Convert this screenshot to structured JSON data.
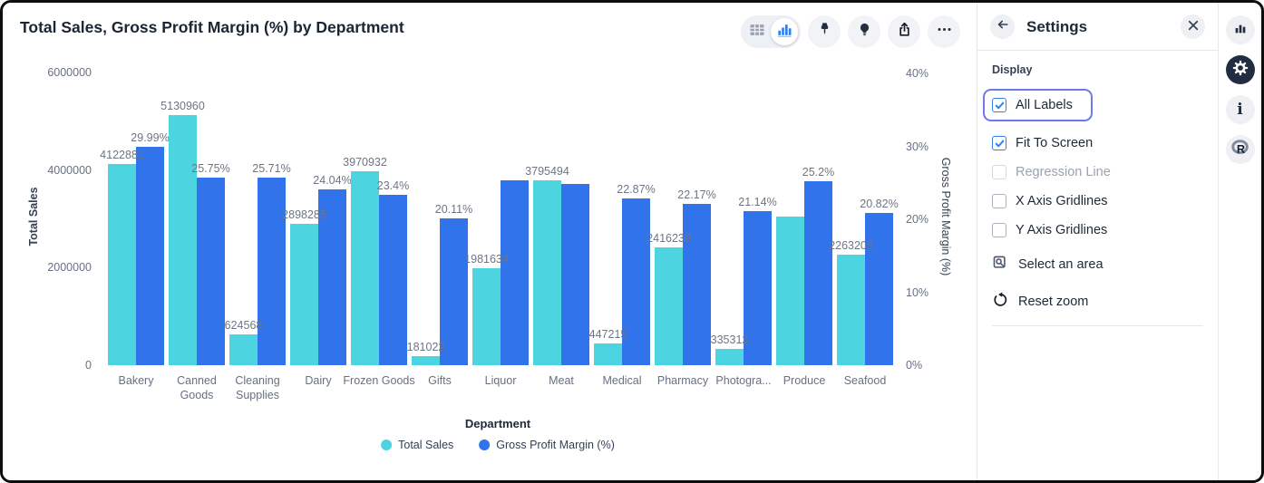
{
  "header": {
    "title": "Total Sales, Gross Profit Margin (%) by Department",
    "toolbar_buttons": [
      "table-view",
      "chart-view",
      "pin",
      "insight",
      "export",
      "more-options"
    ]
  },
  "chart_data": {
    "type": "bar",
    "title": "Total Sales, Gross Profit Margin (%) by Department",
    "xlabel": "Department",
    "grid": "off",
    "legend_position": "bottom",
    "categories": [
      "Bakery",
      "Canned Goods",
      "Cleaning Supplies",
      "Dairy",
      "Frozen Goods",
      "Gifts",
      "Liquor",
      "Meat",
      "Medical",
      "Pharmacy",
      "Photogra...",
      "Produce",
      "Seafood"
    ],
    "series": [
      {
        "name": "Total Sales",
        "axis": "left",
        "color": "#4dd4e1",
        "values": [
          4122881,
          5130960,
          624568,
          2898285,
          3970932,
          181022,
          1981634,
          3795494,
          447215,
          2416230,
          335312,
          3050000,
          2263205
        ],
        "labels": [
          "4122881",
          "5130960",
          "624568",
          "2898285",
          "3970932",
          "181022",
          "1981634",
          "3795494",
          "447215",
          "2416230",
          "335312",
          "",
          "2263205"
        ]
      },
      {
        "name": "Gross Profit Margin (%)",
        "axis": "right",
        "color": "#3173ea",
        "values": [
          29.99,
          25.75,
          25.71,
          24.04,
          23.4,
          20.11,
          25.4,
          24.9,
          22.87,
          22.17,
          21.14,
          25.2,
          20.82
        ],
        "labels": [
          "29.99%",
          "25.75%",
          "25.71%",
          "24.04%",
          "23.4%",
          "20.11%",
          "",
          "",
          "22.87%",
          "22.17%",
          "21.14%",
          "25.2%",
          "20.82%"
        ]
      }
    ],
    "left_axis": {
      "label": "Total Sales",
      "max": 6000000,
      "ticks": [
        0,
        2000000,
        4000000,
        6000000
      ],
      "tick_labels": [
        "0",
        "2000000",
        "4000000",
        "6000000"
      ]
    },
    "right_axis": {
      "label": "Gross Profit Margin (%)",
      "max": 40,
      "ticks": [
        0,
        10,
        20,
        30,
        40
      ],
      "tick_labels": [
        "0%",
        "10%",
        "20%",
        "30%",
        "40%"
      ]
    },
    "legend": [
      {
        "label": "Total Sales",
        "color": "#4dd4e1"
      },
      {
        "label": "Gross Profit Margin (%)",
        "color": "#3173ea"
      }
    ]
  },
  "settings": {
    "title": "Settings",
    "section": "Display",
    "checkboxes": [
      {
        "label": "All Labels",
        "checked": true,
        "disabled": false,
        "focused": true
      },
      {
        "label": "Fit To Screen",
        "checked": true,
        "disabled": false,
        "focused": false
      },
      {
        "label": "Regression Line",
        "checked": false,
        "disabled": true,
        "focused": false
      },
      {
        "label": "X Axis Gridlines",
        "checked": false,
        "disabled": false,
        "focused": false
      },
      {
        "label": "Y Axis Gridlines",
        "checked": false,
        "disabled": false,
        "focused": false
      }
    ],
    "actions": [
      {
        "label": "Select an area",
        "icon": "select-area-icon"
      },
      {
        "label": "Reset zoom",
        "icon": "reset-zoom-icon"
      }
    ]
  },
  "right_rail": {
    "buttons": [
      "chart-panel",
      "settings-panel-active",
      "info",
      "r-logo"
    ]
  },
  "colors": {
    "accent_blue": "#2f80ed",
    "bar_cyan": "#4dd4e1",
    "bar_blue": "#3173ea",
    "focus_ring": "#6f79ea",
    "dark_navy": "#222d42"
  }
}
